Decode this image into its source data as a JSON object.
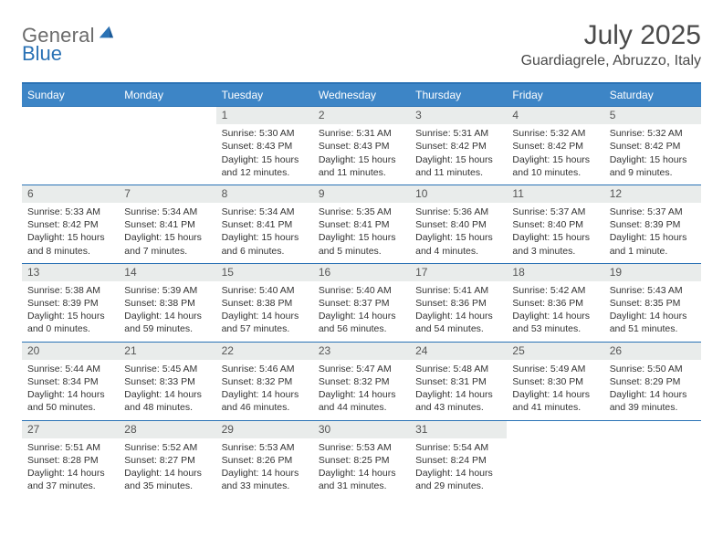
{
  "brand": {
    "text1": "General",
    "text2": "Blue"
  },
  "title": "July 2025",
  "location": "Guardiagrele, Abruzzo, Italy",
  "colors": {
    "header_bg": "#3d85c6",
    "border": "#2a72b5",
    "daynum_bg": "#e9eceb",
    "text": "#333333"
  },
  "days": [
    "Sunday",
    "Monday",
    "Tuesday",
    "Wednesday",
    "Thursday",
    "Friday",
    "Saturday"
  ],
  "weeks": [
    [
      {
        "n": "",
        "sr": "",
        "ss": "",
        "dl": ""
      },
      {
        "n": "",
        "sr": "",
        "ss": "",
        "dl": ""
      },
      {
        "n": "1",
        "sr": "Sunrise: 5:30 AM",
        "ss": "Sunset: 8:43 PM",
        "dl": "Daylight: 15 hours and 12 minutes."
      },
      {
        "n": "2",
        "sr": "Sunrise: 5:31 AM",
        "ss": "Sunset: 8:43 PM",
        "dl": "Daylight: 15 hours and 11 minutes."
      },
      {
        "n": "3",
        "sr": "Sunrise: 5:31 AM",
        "ss": "Sunset: 8:42 PM",
        "dl": "Daylight: 15 hours and 11 minutes."
      },
      {
        "n": "4",
        "sr": "Sunrise: 5:32 AM",
        "ss": "Sunset: 8:42 PM",
        "dl": "Daylight: 15 hours and 10 minutes."
      },
      {
        "n": "5",
        "sr": "Sunrise: 5:32 AM",
        "ss": "Sunset: 8:42 PM",
        "dl": "Daylight: 15 hours and 9 minutes."
      }
    ],
    [
      {
        "n": "6",
        "sr": "Sunrise: 5:33 AM",
        "ss": "Sunset: 8:42 PM",
        "dl": "Daylight: 15 hours and 8 minutes."
      },
      {
        "n": "7",
        "sr": "Sunrise: 5:34 AM",
        "ss": "Sunset: 8:41 PM",
        "dl": "Daylight: 15 hours and 7 minutes."
      },
      {
        "n": "8",
        "sr": "Sunrise: 5:34 AM",
        "ss": "Sunset: 8:41 PM",
        "dl": "Daylight: 15 hours and 6 minutes."
      },
      {
        "n": "9",
        "sr": "Sunrise: 5:35 AM",
        "ss": "Sunset: 8:41 PM",
        "dl": "Daylight: 15 hours and 5 minutes."
      },
      {
        "n": "10",
        "sr": "Sunrise: 5:36 AM",
        "ss": "Sunset: 8:40 PM",
        "dl": "Daylight: 15 hours and 4 minutes."
      },
      {
        "n": "11",
        "sr": "Sunrise: 5:37 AM",
        "ss": "Sunset: 8:40 PM",
        "dl": "Daylight: 15 hours and 3 minutes."
      },
      {
        "n": "12",
        "sr": "Sunrise: 5:37 AM",
        "ss": "Sunset: 8:39 PM",
        "dl": "Daylight: 15 hours and 1 minute."
      }
    ],
    [
      {
        "n": "13",
        "sr": "Sunrise: 5:38 AM",
        "ss": "Sunset: 8:39 PM",
        "dl": "Daylight: 15 hours and 0 minutes."
      },
      {
        "n": "14",
        "sr": "Sunrise: 5:39 AM",
        "ss": "Sunset: 8:38 PM",
        "dl": "Daylight: 14 hours and 59 minutes."
      },
      {
        "n": "15",
        "sr": "Sunrise: 5:40 AM",
        "ss": "Sunset: 8:38 PM",
        "dl": "Daylight: 14 hours and 57 minutes."
      },
      {
        "n": "16",
        "sr": "Sunrise: 5:40 AM",
        "ss": "Sunset: 8:37 PM",
        "dl": "Daylight: 14 hours and 56 minutes."
      },
      {
        "n": "17",
        "sr": "Sunrise: 5:41 AM",
        "ss": "Sunset: 8:36 PM",
        "dl": "Daylight: 14 hours and 54 minutes."
      },
      {
        "n": "18",
        "sr": "Sunrise: 5:42 AM",
        "ss": "Sunset: 8:36 PM",
        "dl": "Daylight: 14 hours and 53 minutes."
      },
      {
        "n": "19",
        "sr": "Sunrise: 5:43 AM",
        "ss": "Sunset: 8:35 PM",
        "dl": "Daylight: 14 hours and 51 minutes."
      }
    ],
    [
      {
        "n": "20",
        "sr": "Sunrise: 5:44 AM",
        "ss": "Sunset: 8:34 PM",
        "dl": "Daylight: 14 hours and 50 minutes."
      },
      {
        "n": "21",
        "sr": "Sunrise: 5:45 AM",
        "ss": "Sunset: 8:33 PM",
        "dl": "Daylight: 14 hours and 48 minutes."
      },
      {
        "n": "22",
        "sr": "Sunrise: 5:46 AM",
        "ss": "Sunset: 8:32 PM",
        "dl": "Daylight: 14 hours and 46 minutes."
      },
      {
        "n": "23",
        "sr": "Sunrise: 5:47 AM",
        "ss": "Sunset: 8:32 PM",
        "dl": "Daylight: 14 hours and 44 minutes."
      },
      {
        "n": "24",
        "sr": "Sunrise: 5:48 AM",
        "ss": "Sunset: 8:31 PM",
        "dl": "Daylight: 14 hours and 43 minutes."
      },
      {
        "n": "25",
        "sr": "Sunrise: 5:49 AM",
        "ss": "Sunset: 8:30 PM",
        "dl": "Daylight: 14 hours and 41 minutes."
      },
      {
        "n": "26",
        "sr": "Sunrise: 5:50 AM",
        "ss": "Sunset: 8:29 PM",
        "dl": "Daylight: 14 hours and 39 minutes."
      }
    ],
    [
      {
        "n": "27",
        "sr": "Sunrise: 5:51 AM",
        "ss": "Sunset: 8:28 PM",
        "dl": "Daylight: 14 hours and 37 minutes."
      },
      {
        "n": "28",
        "sr": "Sunrise: 5:52 AM",
        "ss": "Sunset: 8:27 PM",
        "dl": "Daylight: 14 hours and 35 minutes."
      },
      {
        "n": "29",
        "sr": "Sunrise: 5:53 AM",
        "ss": "Sunset: 8:26 PM",
        "dl": "Daylight: 14 hours and 33 minutes."
      },
      {
        "n": "30",
        "sr": "Sunrise: 5:53 AM",
        "ss": "Sunset: 8:25 PM",
        "dl": "Daylight: 14 hours and 31 minutes."
      },
      {
        "n": "31",
        "sr": "Sunrise: 5:54 AM",
        "ss": "Sunset: 8:24 PM",
        "dl": "Daylight: 14 hours and 29 minutes."
      },
      {
        "n": "",
        "sr": "",
        "ss": "",
        "dl": ""
      },
      {
        "n": "",
        "sr": "",
        "ss": "",
        "dl": ""
      }
    ]
  ]
}
